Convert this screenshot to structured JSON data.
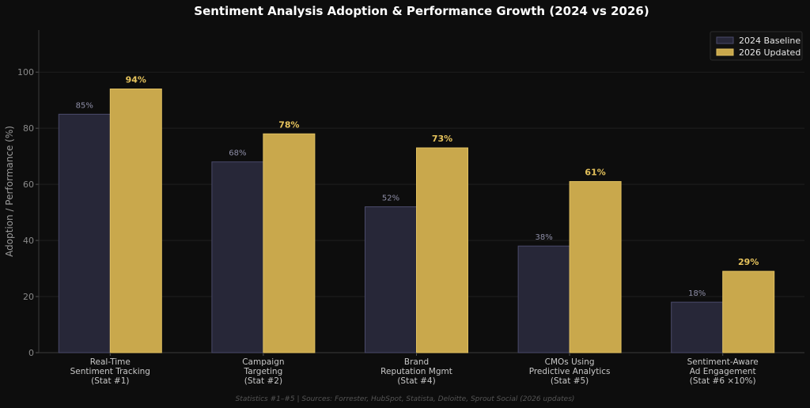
{
  "chart_data": {
    "type": "bar",
    "title": "Sentiment Analysis Adoption & Performance Growth (2024 vs 2026)",
    "ylabel": "Adoption / Performance (%)",
    "xlabel": "",
    "ylim": [
      0,
      115
    ],
    "yticks": [
      0,
      20,
      40,
      60,
      80,
      100
    ],
    "grid": true,
    "legend_position": "top-right",
    "categories": [
      [
        "Real-Time",
        "Sentiment Tracking",
        "(Stat #1)"
      ],
      [
        "Campaign",
        "Targeting",
        "(Stat #2)"
      ],
      [
        "Brand",
        "Reputation Mgmt",
        "(Stat #4)"
      ],
      [
        "CMOs Using",
        "Predictive Analytics",
        "(Stat #5)"
      ],
      [
        "Sentiment-Aware",
        "Ad Engagement",
        "(Stat #6 ×10%)"
      ]
    ],
    "series": [
      {
        "name": "2024 Baseline",
        "values": [
          85,
          68,
          52,
          38,
          18
        ],
        "labels": [
          "85%",
          "68%",
          "52%",
          "38%",
          "18%"
        ],
        "color": "#272738",
        "edge": "#4a4a6a"
      },
      {
        "name": "2026 Updated",
        "values": [
          94,
          78,
          73,
          61,
          29
        ],
        "labels": [
          "94%",
          "78%",
          "73%",
          "61%",
          "29%"
        ],
        "color": "#c9a84c",
        "edge": "#e0c060"
      }
    ],
    "footnote": "Statistics #1–#5 | Sources: Forrester, HubSpot, Statista, Deloitte, Sprout Social (2026 updates)"
  }
}
